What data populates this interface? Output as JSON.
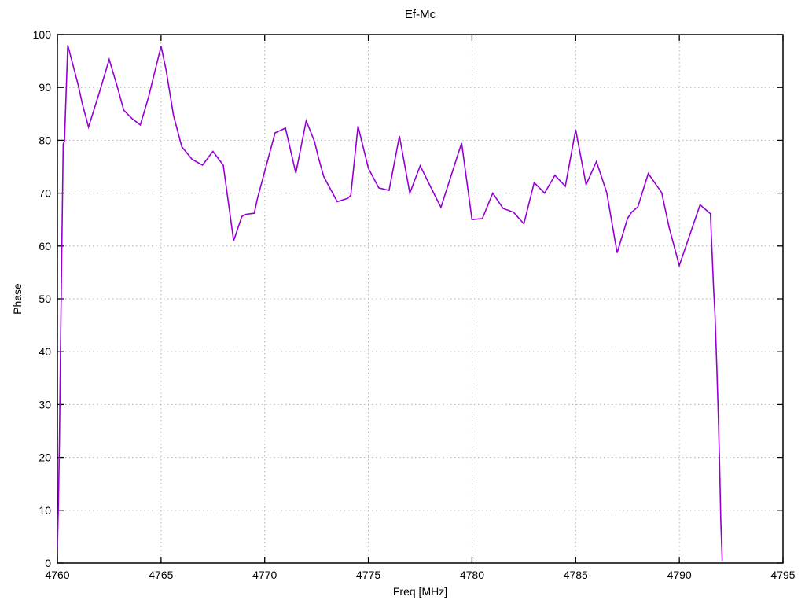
{
  "title": "Ef-Mc",
  "chart_data": {
    "type": "line",
    "title": "Ef-Mc",
    "xlabel": "Freq [MHz]",
    "ylabel": "Phase",
    "xlim": [
      4760,
      4795
    ],
    "ylim": [
      0,
      100
    ],
    "x_ticks": [
      4760,
      4765,
      4770,
      4775,
      4780,
      4785,
      4790,
      4795
    ],
    "y_ticks": [
      0,
      10,
      20,
      30,
      40,
      50,
      60,
      70,
      80,
      90,
      100
    ],
    "grid": true,
    "legend": "none",
    "colors": {
      "line": "#9400d3",
      "grid": "#b0b0b0",
      "axis": "#000000",
      "background": "#ffffff"
    },
    "series": [
      {
        "name": "Ef-Mc",
        "points": [
          [
            4760.0,
            3.0
          ],
          [
            4760.05,
            11.0
          ],
          [
            4760.1,
            23.0
          ],
          [
            4760.15,
            41.0
          ],
          [
            4760.2,
            56.0
          ],
          [
            4760.28,
            79.3
          ],
          [
            4760.34,
            79.8
          ],
          [
            4760.5,
            98.0
          ],
          [
            4761.0,
            90.5
          ],
          [
            4761.2,
            87.0
          ],
          [
            4761.5,
            82.5
          ],
          [
            4762.0,
            88.7
          ],
          [
            4762.5,
            95.3
          ],
          [
            4762.9,
            90.0
          ],
          [
            4763.2,
            85.7
          ],
          [
            4763.6,
            84.1
          ],
          [
            4764.0,
            82.9
          ],
          [
            4764.4,
            88.2
          ],
          [
            4765.0,
            97.8
          ],
          [
            4765.25,
            93.2
          ],
          [
            4765.6,
            84.7
          ],
          [
            4766.0,
            78.8
          ],
          [
            4766.5,
            76.4
          ],
          [
            4767.0,
            75.3
          ],
          [
            4767.5,
            77.9
          ],
          [
            4768.0,
            75.3
          ],
          [
            4768.5,
            61.0
          ],
          [
            4768.9,
            65.6
          ],
          [
            4769.1,
            66.0
          ],
          [
            4769.5,
            66.2
          ],
          [
            4769.65,
            69.0
          ],
          [
            4770.5,
            81.4
          ],
          [
            4771.0,
            82.3
          ],
          [
            4771.5,
            73.8
          ],
          [
            4772.0,
            83.7
          ],
          [
            4772.4,
            79.8
          ],
          [
            4772.6,
            76.6
          ],
          [
            4772.85,
            73.1
          ],
          [
            4773.5,
            68.4
          ],
          [
            4774.0,
            69.0
          ],
          [
            4774.15,
            69.6
          ],
          [
            4774.5,
            82.7
          ],
          [
            4775.0,
            74.7
          ],
          [
            4775.5,
            71.0
          ],
          [
            4776.0,
            70.5
          ],
          [
            4776.5,
            80.8
          ],
          [
            4777.0,
            70.0
          ],
          [
            4777.5,
            75.2
          ],
          [
            4778.0,
            71.2
          ],
          [
            4778.5,
            67.3
          ],
          [
            4779.5,
            79.5
          ],
          [
            4780.0,
            65.0
          ],
          [
            4780.5,
            65.2
          ],
          [
            4781.0,
            70.0
          ],
          [
            4781.5,
            67.1
          ],
          [
            4782.0,
            66.4
          ],
          [
            4782.5,
            64.2
          ],
          [
            4783.0,
            72.0
          ],
          [
            4783.5,
            70.0
          ],
          [
            4784.0,
            73.4
          ],
          [
            4784.5,
            71.3
          ],
          [
            4785.0,
            82.0
          ],
          [
            4785.5,
            71.6
          ],
          [
            4786.0,
            76.0
          ],
          [
            4786.5,
            70.1
          ],
          [
            4787.0,
            58.7
          ],
          [
            4787.5,
            65.2
          ],
          [
            4787.7,
            66.4
          ],
          [
            4788.0,
            67.4
          ],
          [
            4788.5,
            73.7
          ],
          [
            4789.15,
            70.1
          ],
          [
            4789.5,
            63.6
          ],
          [
            4790.0,
            56.3
          ],
          [
            4791.0,
            67.8
          ],
          [
            4791.5,
            66.1
          ],
          [
            4791.65,
            52.0
          ],
          [
            4791.72,
            47.0
          ],
          [
            4791.8,
            38.0
          ],
          [
            4791.88,
            28.0
          ],
          [
            4791.94,
            19.0
          ],
          [
            4792.0,
            8.0
          ],
          [
            4792.07,
            0.5
          ]
        ]
      }
    ]
  }
}
